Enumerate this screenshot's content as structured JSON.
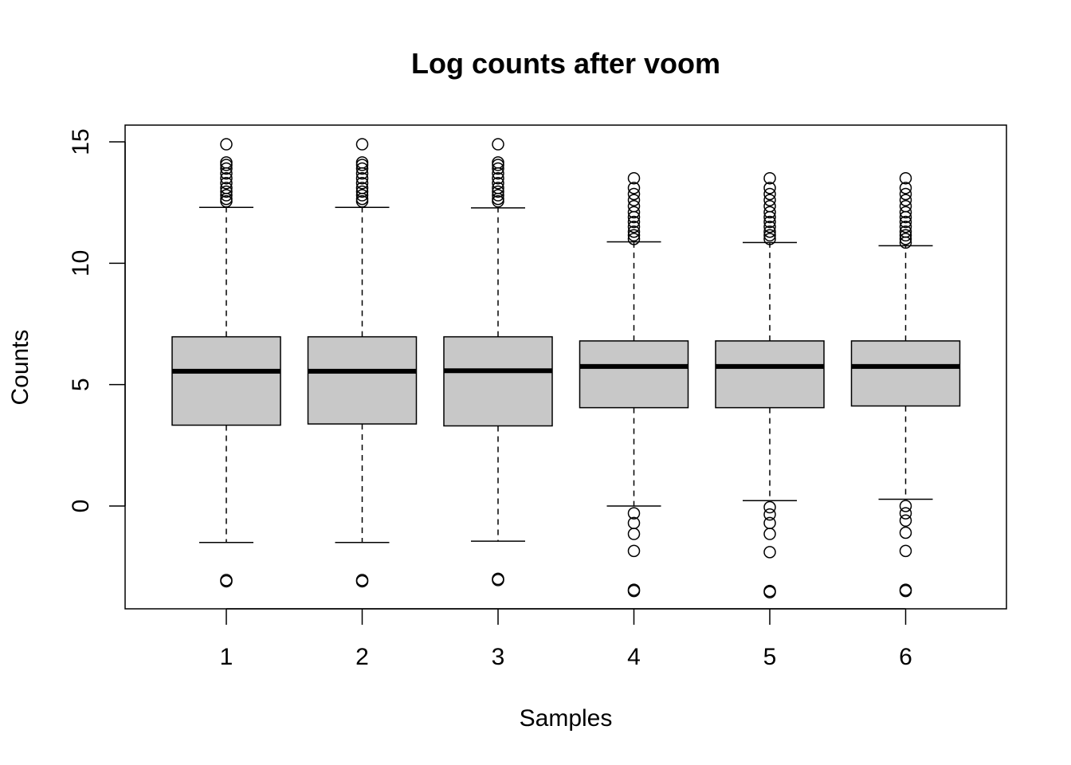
{
  "chart_data": {
    "type": "boxplot",
    "title": "Log counts after voom",
    "xlabel": "Samples",
    "ylabel": "Counts",
    "ylim": [
      -4.2,
      15.7
    ],
    "y_ticks": [
      0,
      5,
      10,
      15
    ],
    "y_tick_labels": [
      "0",
      "5",
      "10",
      "15"
    ],
    "categories": [
      "1",
      "2",
      "3",
      "4",
      "5",
      "6"
    ],
    "box_fill": "#c8c8c8",
    "line_color": "#000000",
    "boxes": [
      {
        "label": "1",
        "whisker_low": -1.5,
        "q1": 3.33,
        "median": 5.55,
        "q3": 6.97,
        "whisker_high": 12.3,
        "outliers": [
          -3.1,
          -3.05,
          12.55,
          12.65,
          12.8,
          12.95,
          13.1,
          13.3,
          13.5,
          13.7,
          13.9,
          14.05,
          14.15,
          14.9
        ]
      },
      {
        "label": "2",
        "whisker_low": -1.5,
        "q1": 3.38,
        "median": 5.55,
        "q3": 6.97,
        "whisker_high": 12.3,
        "outliers": [
          -3.1,
          -3.05,
          12.55,
          12.65,
          12.8,
          12.95,
          13.1,
          13.3,
          13.5,
          13.7,
          13.9,
          14.05,
          14.15,
          14.9
        ]
      },
      {
        "label": "3",
        "whisker_low": -1.45,
        "q1": 3.3,
        "median": 5.57,
        "q3": 6.97,
        "whisker_high": 12.28,
        "outliers": [
          -3.05,
          -3.0,
          12.55,
          12.65,
          12.8,
          12.95,
          13.1,
          13.3,
          13.5,
          13.7,
          13.9,
          14.05,
          14.15,
          14.9
        ]
      },
      {
        "label": "4",
        "whisker_low": 0.0,
        "q1": 4.05,
        "median": 5.75,
        "q3": 6.8,
        "whisker_high": 10.88,
        "outliers": [
          -3.5,
          -3.45,
          -1.85,
          -1.15,
          -0.7,
          -0.3,
          11.0,
          11.15,
          11.3,
          11.5,
          11.7,
          11.9,
          12.1,
          12.35,
          12.6,
          12.85,
          13.1,
          13.5
        ]
      },
      {
        "label": "5",
        "whisker_low": 0.22,
        "q1": 4.05,
        "median": 5.75,
        "q3": 6.8,
        "whisker_high": 10.85,
        "outliers": [
          -3.55,
          -3.5,
          -1.9,
          -1.15,
          -0.7,
          -0.35,
          -0.05,
          11.0,
          11.15,
          11.3,
          11.5,
          11.7,
          11.9,
          12.1,
          12.35,
          12.6,
          12.85,
          13.1,
          13.5
        ]
      },
      {
        "label": "6",
        "whisker_low": 0.28,
        "q1": 4.12,
        "median": 5.75,
        "q3": 6.8,
        "whisker_high": 10.72,
        "outliers": [
          -3.5,
          -3.45,
          -1.85,
          -1.1,
          -0.6,
          -0.3,
          0.0,
          10.85,
          11.0,
          11.15,
          11.3,
          11.5,
          11.7,
          11.9,
          12.1,
          12.35,
          12.6,
          12.85,
          13.1,
          13.5
        ]
      }
    ]
  }
}
